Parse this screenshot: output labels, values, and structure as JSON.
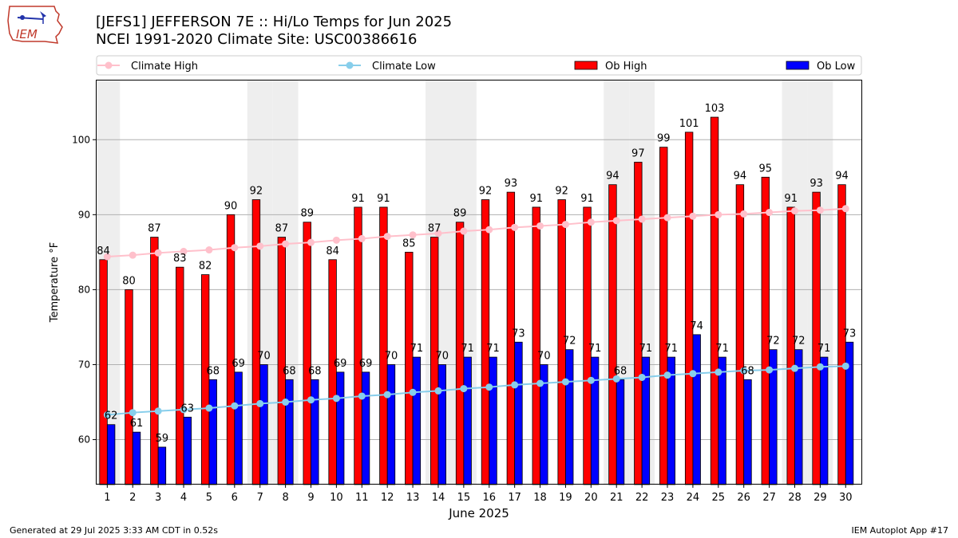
{
  "header": {
    "title_line1": "[JEFS1] JEFFERSON 7E :: Hi/Lo Temps for Jun 2025",
    "title_line2": "NCEI 1991-2020 Climate Site: USC00386616",
    "logo_text": "IEM"
  },
  "footer": {
    "generated": "Generated at 29 Jul 2025 3:33 AM CDT in 0.52s",
    "app": "IEM Autoplot App #17"
  },
  "chart_data": {
    "type": "bar",
    "xlabel": "June 2025",
    "ylabel": "Temperature °F",
    "ylim": [
      54,
      108
    ],
    "yticks": [
      60,
      70,
      80,
      90,
      100
    ],
    "grid": true,
    "legend_placement": "top",
    "weekend_shading_days": [
      1,
      7,
      8,
      14,
      15,
      21,
      22,
      28,
      29
    ],
    "categories": [
      "1",
      "2",
      "3",
      "4",
      "5",
      "6",
      "7",
      "8",
      "9",
      "10",
      "11",
      "12",
      "13",
      "14",
      "15",
      "16",
      "17",
      "18",
      "19",
      "20",
      "21",
      "22",
      "23",
      "24",
      "25",
      "26",
      "27",
      "28",
      "29",
      "30"
    ],
    "series": [
      {
        "name": "Climate High",
        "kind": "line",
        "color": "#ffc0cb",
        "values": [
          84.4,
          84.6,
          84.9,
          85.1,
          85.3,
          85.6,
          85.8,
          86.1,
          86.3,
          86.6,
          86.8,
          87.1,
          87.3,
          87.5,
          87.8,
          88.0,
          88.3,
          88.5,
          88.7,
          89.0,
          89.2,
          89.4,
          89.6,
          89.8,
          90.0,
          90.1,
          90.3,
          90.5,
          90.6,
          90.8
        ]
      },
      {
        "name": "Climate Low",
        "kind": "line",
        "color": "#87ceeb",
        "values": [
          63.3,
          63.6,
          63.8,
          64.0,
          64.2,
          64.5,
          64.8,
          65.0,
          65.3,
          65.5,
          65.8,
          66.0,
          66.3,
          66.5,
          66.8,
          67.0,
          67.3,
          67.5,
          67.7,
          67.9,
          68.1,
          68.3,
          68.6,
          68.8,
          69.0,
          69.2,
          69.3,
          69.5,
          69.7,
          69.8
        ]
      },
      {
        "name": "Ob High",
        "kind": "bar",
        "color": "#ff0000",
        "values": [
          84,
          80,
          87,
          83,
          82,
          90,
          92,
          87,
          89,
          84,
          91,
          91,
          85,
          87,
          89,
          92,
          93,
          91,
          92,
          91,
          94,
          97,
          99,
          101,
          103,
          94,
          95,
          91,
          93,
          94
        ]
      },
      {
        "name": "Ob Low",
        "kind": "bar",
        "color": "#0000ff",
        "values": [
          62,
          61,
          59,
          63,
          68,
          69,
          70,
          68,
          68,
          69,
          69,
          70,
          71,
          70,
          71,
          71,
          73,
          70,
          72,
          71,
          68,
          71,
          71,
          74,
          71,
          68,
          72,
          72,
          71,
          73
        ]
      }
    ]
  }
}
